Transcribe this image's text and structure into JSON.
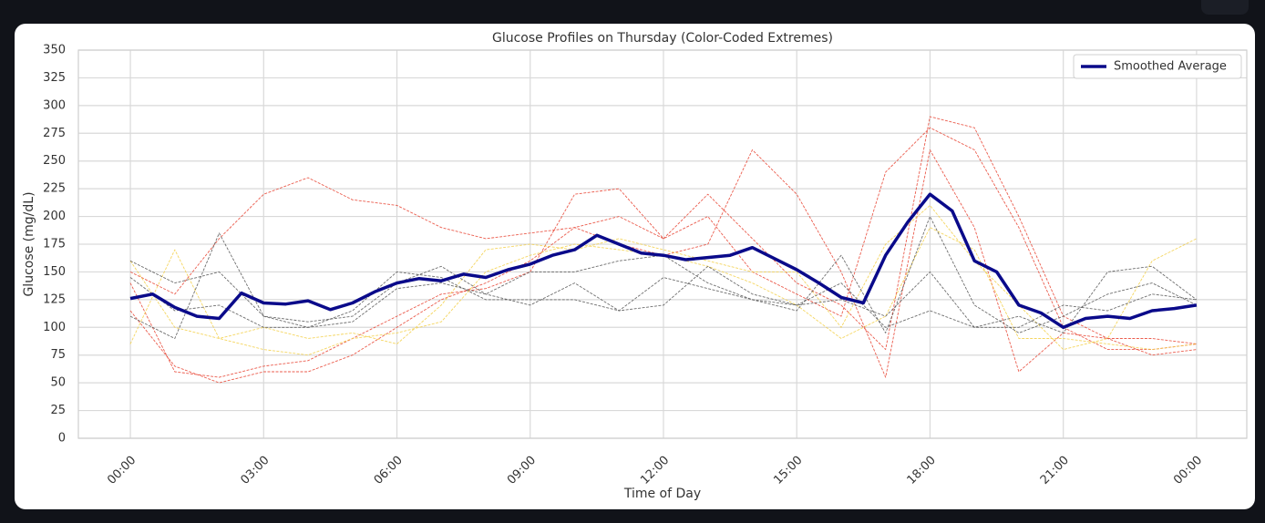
{
  "chart_data": {
    "type": "line",
    "title": "Glucose Profiles on Thursday (Color-Coded Extremes)",
    "x_label": "Time of Day",
    "y_label": "Glucose (mg/dL)",
    "xlim": [
      -1.17,
      25.13
    ],
    "ylim": [
      0,
      350
    ],
    "xticks": [
      {
        "value": 0,
        "label": "00:00"
      },
      {
        "value": 3,
        "label": "03:00"
      },
      {
        "value": 6,
        "label": "06:00"
      },
      {
        "value": 9,
        "label": "09:00"
      },
      {
        "value": 12,
        "label": "12:00"
      },
      {
        "value": 15,
        "label": "15:00"
      },
      {
        "value": 18,
        "label": "18:00"
      },
      {
        "value": 21,
        "label": "21:00"
      },
      {
        "value": 24,
        "label": "00:00"
      }
    ],
    "yticks": [
      0,
      25,
      50,
      75,
      100,
      125,
      150,
      175,
      200,
      225,
      250,
      275,
      300,
      325,
      350
    ],
    "grid": true,
    "legend": "upper right",
    "series": [
      {
        "color": "#e8412f",
        "dashed": true,
        "x": [
          0,
          1,
          2,
          3,
          4,
          5,
          6,
          7,
          8,
          9,
          10,
          11,
          12,
          13,
          14,
          15,
          16,
          17,
          18,
          19,
          20,
          21,
          22,
          23,
          24
        ],
        "values": [
          150,
          130,
          180,
          220,
          235,
          215,
          210,
          190,
          180,
          185,
          190,
          200,
          180,
          200,
          150,
          130,
          110,
          240,
          280,
          260,
          190,
          100,
          80,
          80,
          85
        ]
      },
      {
        "color": "#e8412f",
        "dashed": true,
        "x": [
          0,
          1,
          2,
          3,
          4,
          5,
          6,
          7,
          8,
          9,
          10,
          11,
          12,
          13,
          14,
          15,
          16,
          17,
          18,
          19,
          20,
          21,
          22,
          23,
          24
        ],
        "values": [
          140,
          60,
          55,
          65,
          70,
          90,
          110,
          130,
          135,
          150,
          220,
          225,
          180,
          220,
          180,
          140,
          120,
          80,
          290,
          280,
          200,
          110,
          90,
          75,
          80
        ]
      },
      {
        "color": "#e8412f",
        "dashed": true,
        "x": [
          0,
          1,
          2,
          3,
          4,
          5,
          6,
          7,
          8,
          9,
          10,
          11,
          12,
          13,
          14,
          15,
          16,
          17,
          18,
          19,
          20,
          21,
          22,
          23,
          24
        ],
        "values": [
          115,
          65,
          50,
          60,
          60,
          75,
          100,
          125,
          140,
          160,
          190,
          175,
          165,
          175,
          260,
          220,
          150,
          55,
          260,
          190,
          60,
          95,
          90,
          90,
          85
        ]
      },
      {
        "color": "#f3cf45",
        "dashed": true,
        "x": [
          0,
          1,
          2,
          3,
          4,
          5,
          6,
          7,
          8,
          9,
          10,
          11,
          12,
          13,
          14,
          15,
          16,
          17,
          18,
          19,
          20,
          21,
          22,
          23,
          24
        ],
        "values": [
          85,
          170,
          90,
          100,
          90,
          95,
          85,
          120,
          170,
          175,
          170,
          180,
          170,
          160,
          150,
          150,
          100,
          175,
          210,
          160,
          120,
          80,
          90,
          160,
          180
        ]
      },
      {
        "color": "#f3cf45",
        "dashed": true,
        "x": [
          0,
          1,
          2,
          3,
          4,
          5,
          6,
          7,
          8,
          9,
          10,
          11,
          12,
          13,
          14,
          15,
          16,
          17,
          18,
          19,
          20,
          21,
          22,
          23,
          24
        ],
        "values": [
          160,
          100,
          90,
          80,
          75,
          90,
          95,
          105,
          150,
          165,
          175,
          170,
          165,
          155,
          140,
          120,
          90,
          110,
          190,
          170,
          90,
          90,
          85,
          80,
          85
        ]
      },
      {
        "color": "#555555",
        "dashed": true,
        "x": [
          0,
          1,
          2,
          3,
          4,
          5,
          6,
          7,
          8,
          9,
          10,
          11,
          12,
          13,
          14,
          15,
          16,
          17,
          18,
          19,
          20,
          21,
          22,
          23,
          24
        ],
        "values": [
          160,
          140,
          150,
          110,
          105,
          110,
          140,
          155,
          130,
          120,
          140,
          115,
          120,
          155,
          130,
          120,
          125,
          110,
          150,
          100,
          110,
          95,
          150,
          155,
          125
        ]
      },
      {
        "color": "#555555",
        "dashed": true,
        "x": [
          0,
          1,
          2,
          3,
          4,
          5,
          6,
          7,
          8,
          9,
          10,
          11,
          12,
          13,
          14,
          15,
          16,
          17,
          18,
          19,
          20,
          21,
          22,
          23,
          24
        ],
        "values": [
          145,
          115,
          120,
          100,
          100,
          115,
          150,
          145,
          125,
          125,
          125,
          115,
          145,
          135,
          125,
          120,
          140,
          100,
          115,
          100,
          100,
          120,
          115,
          130,
          125
        ]
      },
      {
        "color": "#555555",
        "dashed": true,
        "x": [
          0,
          1,
          2,
          3,
          4,
          5,
          6,
          7,
          8,
          9,
          10,
          11,
          12,
          13,
          14,
          15,
          16,
          17,
          18,
          19,
          20,
          21,
          22,
          23,
          24
        ],
        "values": [
          110,
          90,
          185,
          110,
          100,
          105,
          135,
          140,
          130,
          150,
          150,
          160,
          165,
          140,
          125,
          115,
          165,
          95,
          200,
          120,
          95,
          110,
          130,
          140,
          120
        ]
      },
      {
        "name": "Smoothed Average",
        "color": "#0a0a8a",
        "dashed": false,
        "x": [
          0,
          0.5,
          1,
          1.5,
          2,
          2.5,
          3,
          3.5,
          4,
          4.5,
          5,
          5.5,
          6,
          6.5,
          7,
          7.5,
          8,
          8.5,
          9,
          9.5,
          10,
          10.5,
          11,
          11.5,
          12,
          12.5,
          13,
          13.5,
          14,
          14.5,
          15,
          15.5,
          16,
          16.5,
          17,
          17.5,
          18,
          18.5,
          19,
          19.5,
          20,
          20.5,
          21,
          21.5,
          22,
          22.5,
          23,
          23.5,
          24
        ],
        "values": [
          126,
          130,
          118,
          110,
          108,
          131,
          122,
          121,
          124,
          116,
          122,
          132,
          140,
          144,
          142,
          148,
          145,
          152,
          157,
          165,
          170,
          183,
          175,
          167,
          165,
          161,
          163,
          165,
          172,
          162,
          152,
          140,
          127,
          122,
          165,
          195,
          220,
          205,
          160,
          150,
          120,
          113,
          100,
          108,
          110,
          108,
          115,
          117,
          120
        ]
      }
    ]
  }
}
